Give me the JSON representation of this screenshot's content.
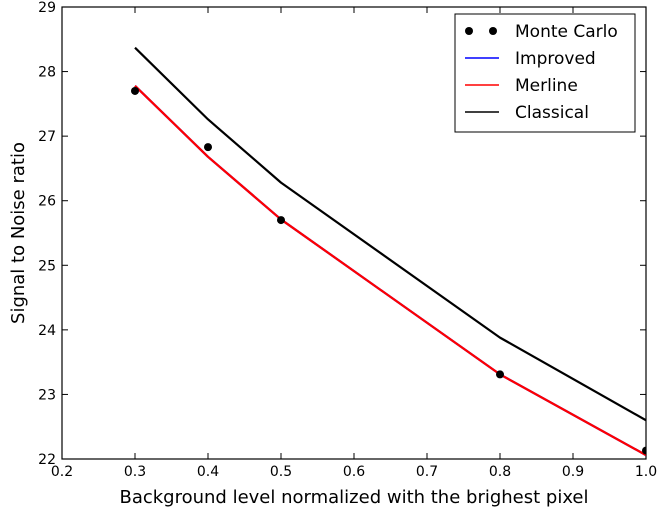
{
  "chart_data": {
    "type": "line",
    "title": "",
    "xlabel": "Background level normalized with the brighest pixel",
    "ylabel": "Signal to Noise ratio",
    "xlim": [
      0.2,
      1.0
    ],
    "ylim": [
      22,
      29
    ],
    "xticks": [
      "0.2",
      "0.3",
      "0.4",
      "0.5",
      "0.6",
      "0.7",
      "0.8",
      "0.9",
      "1.0"
    ],
    "yticks": [
      "22",
      "23",
      "24",
      "25",
      "26",
      "27",
      "28",
      "29"
    ],
    "grid": false,
    "legend_position": "top-right",
    "series": [
      {
        "name": "Monte Carlo",
        "style": "markers",
        "color": "#000000",
        "x": [
          0.3,
          0.4,
          0.5,
          0.8,
          1.0
        ],
        "y": [
          27.7,
          26.83,
          25.7,
          23.31,
          22.13
        ]
      },
      {
        "name": "Improved",
        "style": "line",
        "color": "#0000ff",
        "x": [
          0.3,
          0.4,
          0.5,
          0.8,
          1.0
        ],
        "y": [
          27.78,
          26.68,
          25.71,
          23.31,
          22.06
        ]
      },
      {
        "name": "Merline",
        "style": "line",
        "color": "#ff0000",
        "x": [
          0.3,
          0.4,
          0.5,
          0.8,
          1.0
        ],
        "y": [
          27.78,
          26.68,
          25.71,
          23.31,
          22.06
        ]
      },
      {
        "name": "Classical",
        "style": "line",
        "color": "#000000",
        "x": [
          0.3,
          0.4,
          0.5,
          0.8,
          1.0
        ],
        "y": [
          28.37,
          27.26,
          26.28,
          23.88,
          22.6
        ]
      }
    ]
  }
}
